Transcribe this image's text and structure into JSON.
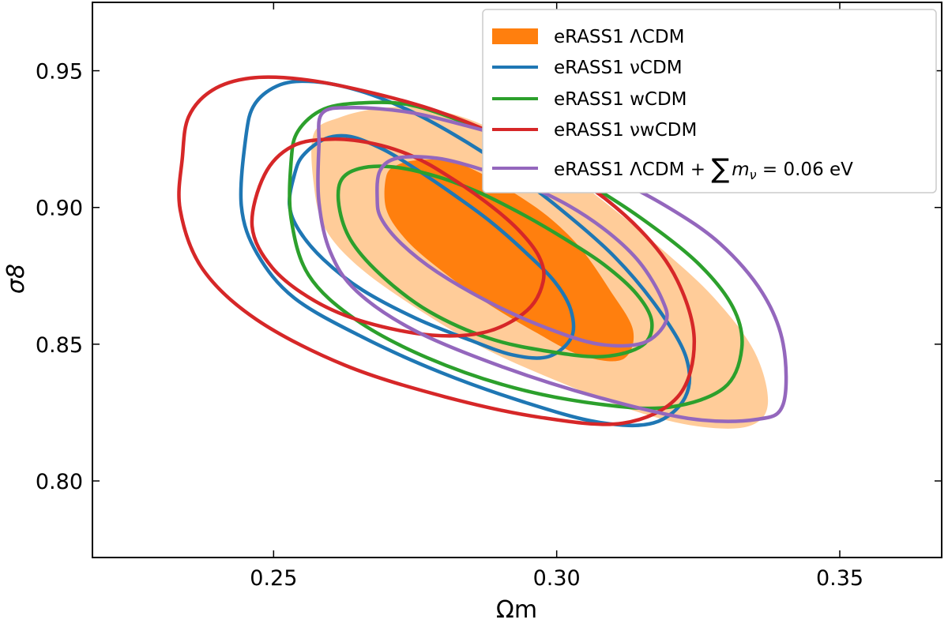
{
  "chart_data": {
    "type": "contour",
    "xlabel": "Ωm",
    "ylabel": "σ8",
    "xlim": [
      0.218,
      0.368
    ],
    "ylim": [
      0.772,
      0.975
    ],
    "x_ticks": [
      {
        "value": 0.25,
        "label": "0.25"
      },
      {
        "value": 0.3,
        "label": "0.30"
      },
      {
        "value": 0.35,
        "label": "0.35"
      }
    ],
    "y_ticks": [
      {
        "value": 0.8,
        "label": "0.80"
      },
      {
        "value": 0.85,
        "label": "0.85"
      },
      {
        "value": 0.9,
        "label": "0.90"
      },
      {
        "value": 0.95,
        "label": "0.95"
      }
    ],
    "legend_position": "top-right",
    "series": [
      {
        "name": "eRASS1 ΛCDM",
        "style": "filled",
        "color": "#ff7f0e",
        "inner_color": "#ff7f0e",
        "outer_color": "#ffcc99",
        "contours": [
          {
            "level": "1sigma",
            "points": [
              [
                0.2699,
                0.9114
              ],
              [
                0.2719,
                0.9156
              ],
              [
                0.2759,
                0.9174
              ],
              [
                0.2813,
                0.9169
              ],
              [
                0.2866,
                0.9125
              ],
              [
                0.2924,
                0.9054
              ],
              [
                0.2984,
                0.8968
              ],
              [
                0.3041,
                0.8854
              ],
              [
                0.3093,
                0.8701
              ],
              [
                0.3135,
                0.855
              ],
              [
                0.3116,
                0.8444
              ],
              [
                0.3042,
                0.846
              ],
              [
                0.2961,
                0.8546
              ],
              [
                0.2868,
                0.8662
              ],
              [
                0.2786,
                0.8786
              ],
              [
                0.2731,
                0.8889
              ],
              [
                0.2699,
                0.8994
              ]
            ]
          },
          {
            "level": "2sigma",
            "points": [
              [
                0.2571,
                0.927
              ],
              [
                0.2618,
                0.933
              ],
              [
                0.2688,
                0.9363
              ],
              [
                0.2764,
                0.9364
              ],
              [
                0.2846,
                0.9322
              ],
              [
                0.2925,
                0.9244
              ],
              [
                0.3007,
                0.914
              ],
              [
                0.3095,
                0.9003
              ],
              [
                0.3186,
                0.8847
              ],
              [
                0.3276,
                0.8674
              ],
              [
                0.3349,
                0.8474
              ],
              [
                0.3373,
                0.8283
              ],
              [
                0.3339,
                0.82
              ],
              [
                0.3248,
                0.82
              ],
              [
                0.3136,
                0.8257
              ],
              [
                0.3,
                0.8366
              ],
              [
                0.2872,
                0.8485
              ],
              [
                0.2755,
                0.8628
              ],
              [
                0.2652,
                0.878
              ],
              [
                0.2591,
                0.8923
              ],
              [
                0.2571,
                0.9084
              ]
            ]
          }
        ]
      },
      {
        "name": "eRASS1 νCDM",
        "style": "line",
        "color": "#1f77b4",
        "contours": [
          {
            "level": "1sigma",
            "points": [
              [
                0.2537,
                0.9121
              ],
              [
                0.2552,
                0.919
              ],
              [
                0.2591,
                0.9251
              ],
              [
                0.2636,
                0.9259
              ],
              [
                0.2694,
                0.9212
              ],
              [
                0.2751,
                0.9141
              ],
              [
                0.2816,
                0.905
              ],
              [
                0.2882,
                0.895
              ],
              [
                0.2948,
                0.883
              ],
              [
                0.2997,
                0.8727
              ],
              [
                0.3025,
                0.8625
              ],
              [
                0.3026,
                0.8525
              ],
              [
                0.2986,
                0.8455
              ],
              [
                0.2924,
                0.846
              ],
              [
                0.2847,
                0.8515
              ],
              [
                0.2753,
                0.8593
              ],
              [
                0.2657,
                0.8698
              ],
              [
                0.2588,
                0.881
              ],
              [
                0.2545,
                0.8916
              ],
              [
                0.2528,
                0.901
              ]
            ]
          },
          {
            "level": "2sigma",
            "points": [
              [
                0.2451,
                0.9258
              ],
              [
                0.2467,
                0.9379
              ],
              [
                0.2512,
                0.9449
              ],
              [
                0.2572,
                0.946
              ],
              [
                0.2651,
                0.9427
              ],
              [
                0.2734,
                0.936
              ],
              [
                0.282,
                0.9265
              ],
              [
                0.2909,
                0.9147
              ],
              [
                0.3003,
                0.9
              ],
              [
                0.3103,
                0.8818
              ],
              [
                0.318,
                0.8627
              ],
              [
                0.3229,
                0.8449
              ],
              [
                0.3227,
                0.8306
              ],
              [
                0.3171,
                0.8212
              ],
              [
                0.3073,
                0.8215
              ],
              [
                0.2943,
                0.8288
              ],
              [
                0.2795,
                0.8397
              ],
              [
                0.2654,
                0.8529
              ],
              [
                0.2536,
                0.867
              ],
              [
                0.2471,
                0.8831
              ],
              [
                0.2443,
                0.9006
              ]
            ]
          }
        ]
      },
      {
        "name": "eRASS1 wCDM",
        "style": "line",
        "color": "#2ca02c",
        "contours": [
          {
            "level": "1sigma",
            "points": [
              [
                0.2618,
                0.9094
              ],
              [
                0.2651,
                0.9142
              ],
              [
                0.2712,
                0.9148
              ],
              [
                0.2792,
                0.9111
              ],
              [
                0.2866,
                0.9052
              ],
              [
                0.2946,
                0.8968
              ],
              [
                0.3016,
                0.8883
              ],
              [
                0.3083,
                0.8792
              ],
              [
                0.3141,
                0.8684
              ],
              [
                0.3168,
                0.8581
              ],
              [
                0.3151,
                0.8495
              ],
              [
                0.3082,
                0.8455
              ],
              [
                0.2985,
                0.8474
              ],
              [
                0.288,
                0.8522
              ],
              [
                0.2776,
                0.8618
              ],
              [
                0.2696,
                0.8741
              ],
              [
                0.264,
                0.8868
              ],
              [
                0.2617,
                0.8987
              ]
            ]
          },
          {
            "level": "2sigma",
            "points": [
              [
                0.2531,
                0.9168
              ],
              [
                0.2543,
                0.9279
              ],
              [
                0.2589,
                0.936
              ],
              [
                0.2662,
                0.9383
              ],
              [
                0.2743,
                0.9374
              ],
              [
                0.2839,
                0.9309
              ],
              [
                0.2941,
                0.922
              ],
              [
                0.3042,
                0.9103
              ],
              [
                0.3147,
                0.8964
              ],
              [
                0.3248,
                0.8799
              ],
              [
                0.3311,
                0.8636
              ],
              [
                0.3327,
                0.8486
              ],
              [
                0.3296,
                0.8341
              ],
              [
                0.32,
                0.827
              ],
              [
                0.3079,
                0.828
              ],
              [
                0.2924,
                0.8341
              ],
              [
                0.2771,
                0.8451
              ],
              [
                0.2645,
                0.859
              ],
              [
                0.2562,
                0.8752
              ],
              [
                0.2531,
                0.896
              ]
            ]
          }
        ]
      },
      {
        "name": "eRASS1 νwCDM",
        "style": "line",
        "color": "#d62728",
        "contours": [
          {
            "level": "1sigma",
            "points": [
              [
                0.2462,
                0.8932
              ],
              [
                0.2484,
                0.912
              ],
              [
                0.2533,
                0.9224
              ],
              [
                0.2603,
                0.925
              ],
              [
                0.268,
                0.9232
              ],
              [
                0.2747,
                0.9186
              ],
              [
                0.2806,
                0.9118
              ],
              [
                0.2878,
                0.9015
              ],
              [
                0.2932,
                0.8919
              ],
              [
                0.2969,
                0.8819
              ],
              [
                0.2976,
                0.8729
              ],
              [
                0.2948,
                0.8624
              ],
              [
                0.2877,
                0.8546
              ],
              [
                0.278,
                0.8533
              ],
              [
                0.2663,
                0.858
              ],
              [
                0.2573,
                0.8658
              ],
              [
                0.2498,
                0.8779
              ]
            ]
          },
          {
            "level": "2sigma",
            "points": [
              [
                0.2339,
                0.9184
              ],
              [
                0.235,
                0.9332
              ],
              [
                0.2392,
                0.9429
              ],
              [
                0.2459,
                0.9473
              ],
              [
                0.2549,
                0.9469
              ],
              [
                0.266,
                0.9426
              ],
              [
                0.2788,
                0.9353
              ],
              [
                0.2917,
                0.9243
              ],
              [
                0.3042,
                0.9098
              ],
              [
                0.3147,
                0.8919
              ],
              [
                0.3213,
                0.8733
              ],
              [
                0.3243,
                0.8511
              ],
              [
                0.3214,
                0.8308
              ],
              [
                0.3116,
                0.8211
              ],
              [
                0.2969,
                0.8233
              ],
              [
                0.2802,
                0.8308
              ],
              [
                0.2626,
                0.8423
              ],
              [
                0.247,
                0.859
              ],
              [
                0.2375,
                0.8774
              ],
              [
                0.2335,
                0.8991
              ]
            ]
          }
        ]
      },
      {
        "name": "eRASS1 ΛCDM + ∑mν = 0.06 eV",
        "style": "line",
        "color": "#9467bd",
        "contours": [
          {
            "level": "1sigma",
            "points": [
              [
                0.2683,
                0.9033
              ],
              [
                0.2688,
                0.9135
              ],
              [
                0.272,
                0.9181
              ],
              [
                0.2789,
                0.918
              ],
              [
                0.2866,
                0.914
              ],
              [
                0.2946,
                0.9082
              ],
              [
                0.3022,
                0.9006
              ],
              [
                0.3093,
                0.8906
              ],
              [
                0.3147,
                0.8798
              ],
              [
                0.3185,
                0.8669
              ],
              [
                0.3193,
                0.8583
              ],
              [
                0.3153,
                0.8505
              ],
              [
                0.3075,
                0.85
              ],
              [
                0.2984,
                0.8558
              ],
              [
                0.2886,
                0.8648
              ],
              [
                0.2789,
                0.8764
              ],
              [
                0.2725,
                0.8869
              ],
              [
                0.269,
                0.896
              ]
            ]
          },
          {
            "level": "2sigma",
            "points": [
              [
                0.258,
                0.9224
              ],
              [
                0.2586,
                0.9345
              ],
              [
                0.2641,
                0.9365
              ],
              [
                0.2739,
                0.9348
              ],
              [
                0.2842,
                0.9298
              ],
              [
                0.2955,
                0.923
              ],
              [
                0.3073,
                0.9134
              ],
              [
                0.3194,
                0.9004
              ],
              [
                0.3289,
                0.8867
              ],
              [
                0.3363,
                0.8689
              ],
              [
                0.34,
                0.8501
              ],
              [
                0.34,
                0.828
              ],
              [
                0.3353,
                0.8225
              ],
              [
                0.3238,
                0.8227
              ],
              [
                0.3075,
                0.8305
              ],
              [
                0.2907,
                0.8415
              ],
              [
                0.2751,
                0.8548
              ],
              [
                0.2647,
                0.8693
              ],
              [
                0.26,
                0.8838
              ],
              [
                0.258,
                0.902
              ]
            ]
          }
        ]
      }
    ]
  },
  "legend_equation": {
    "sum": "∑",
    "m": "m",
    "nu": "ν",
    "eq": " = 0.06 eV"
  }
}
